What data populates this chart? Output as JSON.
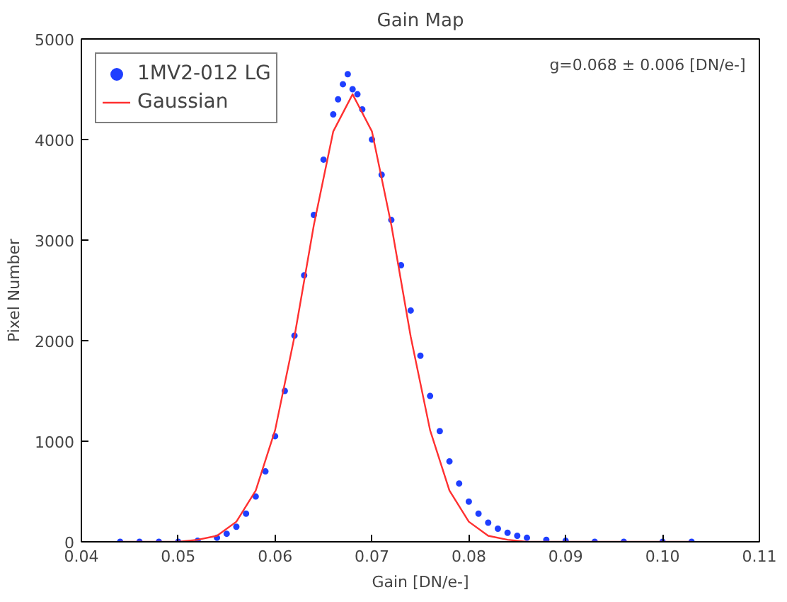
{
  "chart_data": {
    "type": "scatter",
    "title": "Gain Map",
    "xlabel": "Gain [DN/e-]",
    "ylabel": "Pixel Number",
    "xlim": [
      0.04,
      0.11
    ],
    "xticks": [
      {
        "value": 0.04,
        "label": "0.04"
      },
      {
        "value": 0.05,
        "label": "0.05"
      },
      {
        "value": 0.06,
        "label": "0.06"
      },
      {
        "value": 0.07,
        "label": "0.07"
      },
      {
        "value": 0.08,
        "label": "0.08"
      },
      {
        "value": 0.09,
        "label": "0.09"
      },
      {
        "value": 0.1,
        "label": "0.10"
      },
      {
        "value": 0.11,
        "label": "0.11"
      }
    ],
    "ylim": [
      0,
      5000
    ],
    "yticks": [
      0,
      1000,
      2000,
      3000,
      4000,
      5000
    ],
    "grid": false,
    "legend": "top left",
    "annotations": [
      "g=0.068 ± 0.006 [DN/e-]"
    ],
    "series": [
      {
        "name": "1MV2-012 LG",
        "marker": "circle",
        "color": "#1f3fff",
        "x": [
          0.044,
          0.046,
          0.048,
          0.05,
          0.052,
          0.054,
          0.055,
          0.056,
          0.057,
          0.058,
          0.059,
          0.06,
          0.061,
          0.062,
          0.063,
          0.064,
          0.065,
          0.066,
          0.0665,
          0.067,
          0.0675,
          0.068,
          0.0685,
          0.069,
          0.07,
          0.071,
          0.072,
          0.073,
          0.074,
          0.075,
          0.076,
          0.077,
          0.078,
          0.079,
          0.08,
          0.081,
          0.082,
          0.083,
          0.084,
          0.085,
          0.086,
          0.088,
          0.09,
          0.093,
          0.096,
          0.1,
          0.103
        ],
        "values": [
          0,
          0,
          0,
          0,
          10,
          40,
          80,
          150,
          280,
          450,
          700,
          1050,
          1500,
          2050,
          2650,
          3250,
          3800,
          4250,
          4400,
          4550,
          4650,
          4500,
          4450,
          4300,
          4000,
          3650,
          3200,
          2750,
          2300,
          1850,
          1450,
          1100,
          800,
          580,
          400,
          280,
          190,
          130,
          90,
          60,
          40,
          20,
          10,
          0,
          0,
          0,
          0
        ]
      },
      {
        "name": "Gaussian",
        "type": "line",
        "line_style": "solid",
        "color": "#ff3030",
        "x": [
          0.044,
          0.05,
          0.052,
          0.054,
          0.056,
          0.058,
          0.06,
          0.062,
          0.064,
          0.066,
          0.068,
          0.07,
          0.072,
          0.074,
          0.076,
          0.078,
          0.08,
          0.082,
          0.084,
          0.086,
          0.09,
          0.103
        ],
        "values": [
          0,
          0,
          20,
          60,
          200,
          510,
          1110,
          2040,
          3150,
          4080,
          4450,
          4080,
          3150,
          2040,
          1110,
          510,
          200,
          60,
          20,
          0,
          0,
          0
        ]
      }
    ]
  }
}
